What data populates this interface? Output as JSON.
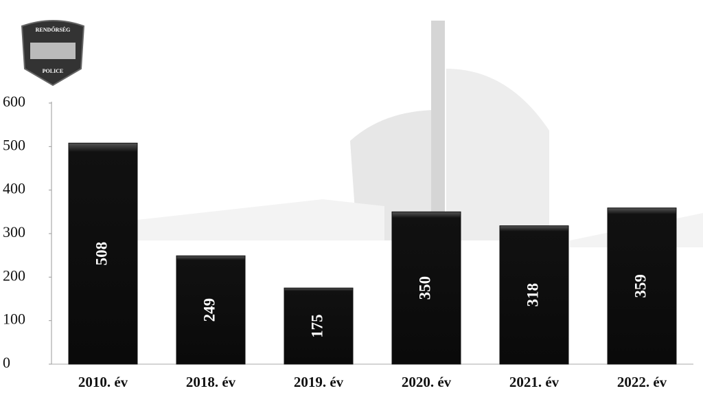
{
  "badge": {
    "top": "RENDŐRSÉG",
    "bottom": "POLICE"
  },
  "chart_data": {
    "type": "bar",
    "categories": [
      "2010. év",
      "2018. év",
      "2019. év",
      "2020. év",
      "2021. év",
      "2022. év"
    ],
    "values": [
      508,
      249,
      175,
      350,
      318,
      359
    ],
    "color": "#111111",
    "ylim": [
      0,
      600
    ],
    "yticks": [
      0,
      100,
      200,
      300,
      400,
      500,
      600
    ],
    "grid": false
  }
}
